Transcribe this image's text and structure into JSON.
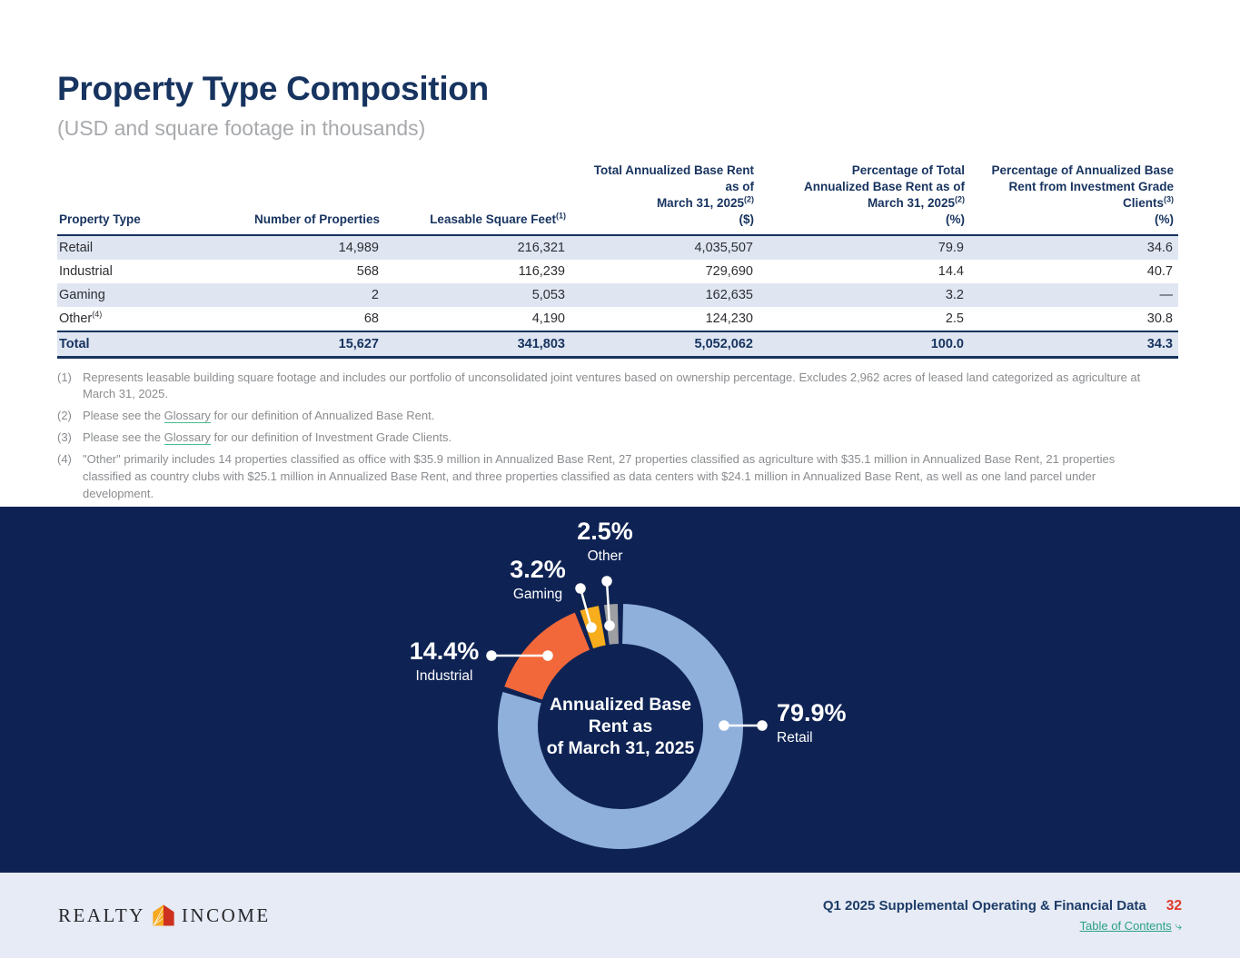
{
  "page": {
    "title": "Property Type Composition",
    "subtitle": "(USD and square footage in thousands)"
  },
  "table": {
    "headers": {
      "c0": {
        "line1": "Property Type"
      },
      "c1": {
        "line1": "Number of Properties"
      },
      "c2": {
        "line1": "Leasable Square Feet",
        "sup": "(1)"
      },
      "c3": {
        "line1": "Total Annualized Base Rent",
        "line2": "as of",
        "line3": "March 31, 2025",
        "sup": "(2)",
        "line4": "($)"
      },
      "c4": {
        "line1": "Percentage of Total",
        "line2": "Annualized Base Rent as of",
        "line3": "March 31, 2025",
        "sup": "(2)",
        "line4": "(%)"
      },
      "c5": {
        "line1": "Percentage of Annualized Base",
        "line2": "Rent from Investment Grade",
        "line3": "Clients",
        "sup": "(3)",
        "line4": "(%)"
      }
    },
    "rows": [
      {
        "type": "Retail",
        "sup": "",
        "c1": "14,989",
        "c2": "216,321",
        "c3": "4,035,507",
        "c4": "79.9",
        "c5": "34.6"
      },
      {
        "type": "Industrial",
        "sup": "",
        "c1": "568",
        "c2": "116,239",
        "c3": "729,690",
        "c4": "14.4",
        "c5": "40.7"
      },
      {
        "type": "Gaming",
        "sup": "",
        "c1": "2",
        "c2": "5,053",
        "c3": "162,635",
        "c4": "3.2",
        "c5": "—"
      },
      {
        "type": "Other",
        "sup": "(4)",
        "c1": "68",
        "c2": "4,190",
        "c3": "124,230",
        "c4": "2.5",
        "c5": "30.8"
      }
    ],
    "total": {
      "type": "Total",
      "c1": "15,627",
      "c2": "341,803",
      "c3": "5,052,062",
      "c4": "100.0",
      "c5": "34.3"
    }
  },
  "footnotes": [
    {
      "num": "(1)",
      "text": "Represents leasable building square footage and includes our portfolio of unconsolidated joint ventures based on ownership percentage. Excludes 2,962 acres of leased land categorized as agriculture at March 31, 2025."
    },
    {
      "num": "(2)",
      "pre": "Please see the ",
      "link": "Glossary",
      "post": " for our definition of Annualized Base Rent."
    },
    {
      "num": "(3)",
      "pre": "Please see the ",
      "link": "Glossary",
      "post": " for our definition of Investment Grade Clients."
    },
    {
      "num": "(4)",
      "text": "\"Other\" primarily includes 14 properties classified as office with $35.9 million in Annualized Base Rent, 27 properties classified as agriculture with $35.1 million in Annualized Base Rent, 21 properties classified as country clubs with $25.1 million in Annualized Base Rent, and three properties classified as data centers with $24.1 million in Annualized Base Rent, as well as one land parcel under development."
    }
  ],
  "chart_data": {
    "type": "pie",
    "subtype": "donut",
    "title": "Annualized Base Rent as of March 31, 2025",
    "center_label": [
      "Annualized Base",
      "Rent as",
      "of March 31, 2025"
    ],
    "background": "#0e2354",
    "segments": [
      {
        "label": "Retail",
        "value": 79.9,
        "display": "79.9%",
        "color": "#8fb0db"
      },
      {
        "label": "Industrial",
        "value": 14.4,
        "display": "14.4%",
        "color": "#f3683a"
      },
      {
        "label": "Gaming",
        "value": 3.2,
        "display": "3.2%",
        "color": "#f8ad1d"
      },
      {
        "label": "Other",
        "value": 2.5,
        "display": "2.5%",
        "color": "#9d9fa2"
      }
    ]
  },
  "colors": {
    "title_navy": "#17335f",
    "chart_navy": "#0e2354",
    "row_shade": "#dfe6f2",
    "footer_bg": "#e6ebf5",
    "page_number_red": "#e0392c",
    "link_green": "#2aa186"
  },
  "footer": {
    "logo_left": "REALTY",
    "logo_right": "INCOME",
    "doc_title": "Q1 2025 Supplemental Operating & Financial Data",
    "page_number": "32",
    "toc_label": "Table of Contents",
    "toc_arrow": "⤷"
  }
}
